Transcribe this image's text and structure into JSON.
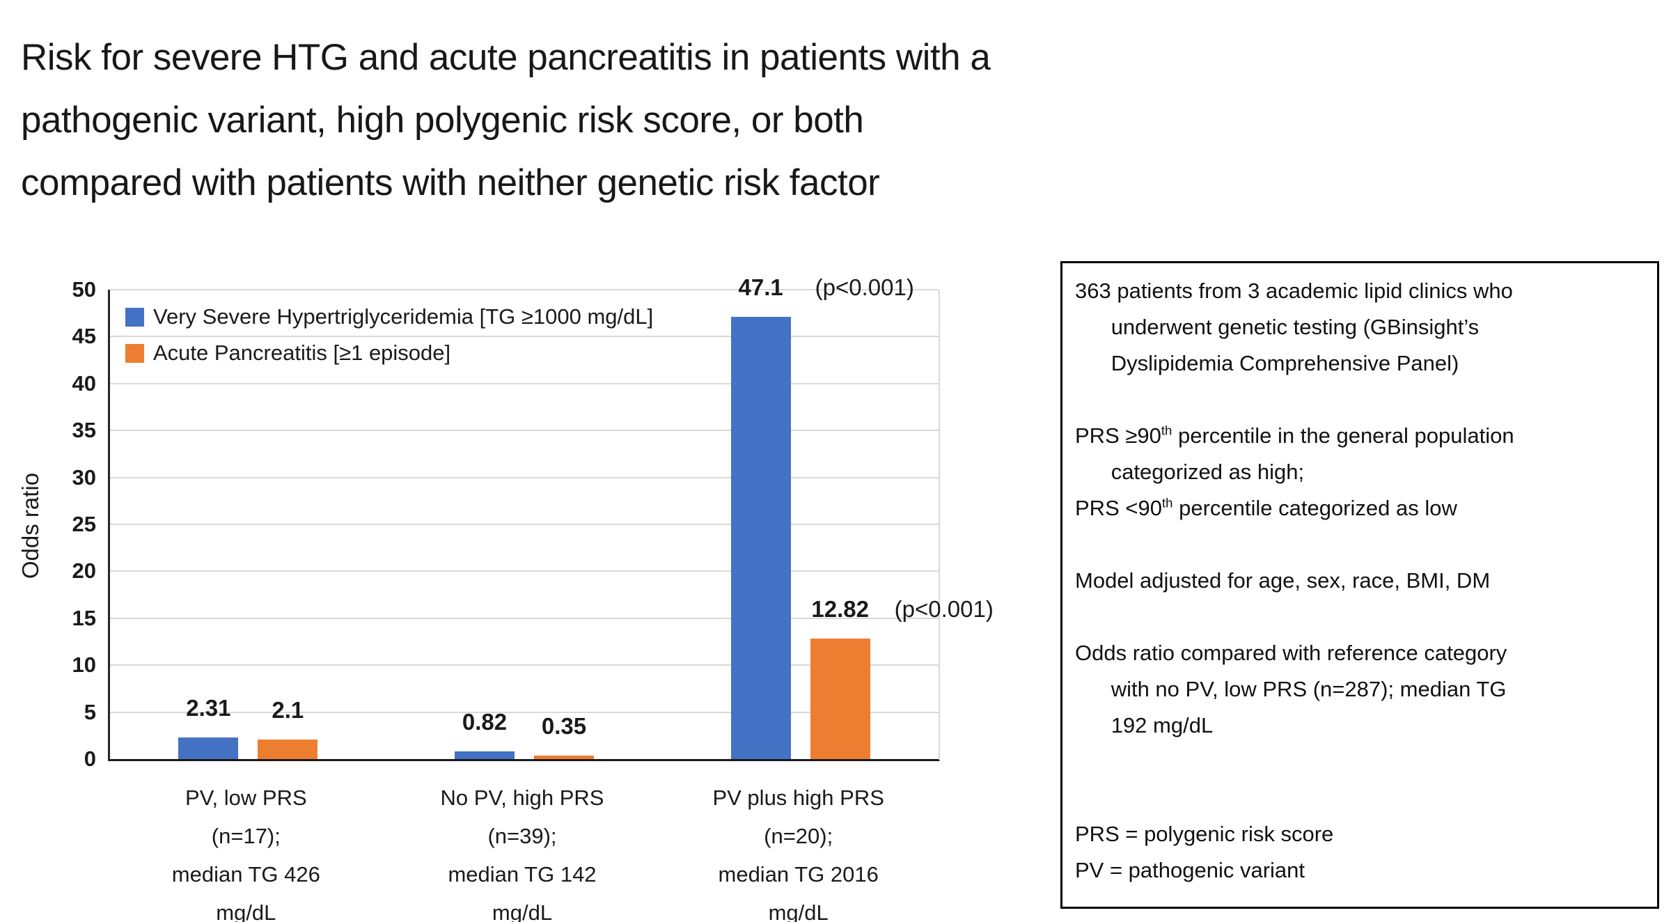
{
  "title": "Risk for severe HTG and acute pancreatitis in patients with a\npathogenic variant, high polygenic risk score, or both\ncompared with patients with neither genetic risk factor",
  "chart_data": {
    "type": "bar",
    "title": "",
    "xlabel": "",
    "ylabel": "Odds ratio",
    "ylim": [
      0,
      50
    ],
    "ytick_step": 5,
    "yticks": [
      0,
      5,
      10,
      15,
      20,
      25,
      30,
      35,
      40,
      45,
      50
    ],
    "grid": true,
    "legend_position": "top-left-inside",
    "gridline_color": "#d9d9d9",
    "categories": [
      "PV, low PRS\n(n=17);\nmedian TG 426\nmg/dL",
      "No PV, high PRS\n(n=39);\nmedian TG 142\nmg/dL",
      "PV plus high PRS\n(n=20);\nmedian TG 2016\nmg/dL"
    ],
    "series": [
      {
        "name": "Very Severe Hypertriglyceridemia [TG ≥1000 mg/dL]",
        "color": "#4472C4",
        "values": [
          2.31,
          0.82,
          47.1
        ],
        "labels": [
          "2.31",
          "0.82",
          "47.1"
        ],
        "annotations": [
          null,
          null,
          "(p<0.001)"
        ]
      },
      {
        "name": "Acute Pancreatitis [≥1 episode]",
        "color": "#ED7D31",
        "values": [
          2.1,
          0.35,
          12.82
        ],
        "labels": [
          "2.1",
          "0.35",
          "12.82"
        ],
        "annotations": [
          null,
          null,
          "(p<0.001)"
        ]
      }
    ]
  },
  "info_box": {
    "text": "363 patients from 3 academic lipid clinics who\n      underwent genetic testing (GBinsight’s\n      Dyslipidemia Comprehensive Panel)\n\nPRS ≥90^th^ percentile in the general population\n      categorized as high;\nPRS <90^th^ percentile categorized as low\n\nModel adjusted for age, sex, race, BMI, DM\n\nOdds ratio compared with reference category\n      with no PV, low PRS (n=287); median TG\n      192 mg/dL\n\n\nPRS = polygenic risk score\nPV = pathogenic variant"
  }
}
